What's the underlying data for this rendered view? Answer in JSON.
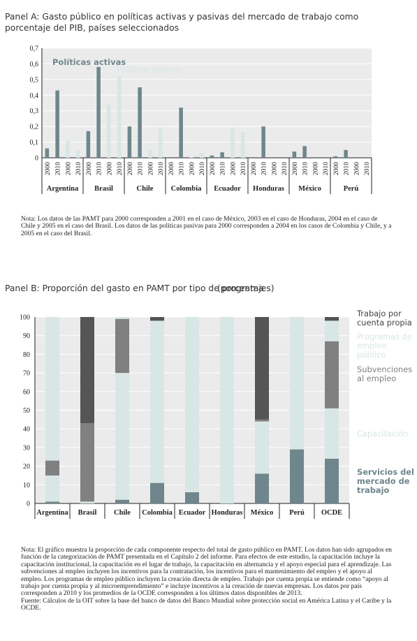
{
  "panel_a": {
    "title": "Panel A: Gasto público en políticas activas y pasivas del mercado de trabajo como porcentaje del PIB, países seleccionados",
    "note": "Nota: Los datos de las PAMT para 2000 corresponden a 2001 en el caso de México, 2003 en el caso de Honduras, 2004 en el caso de Chile y 2005 en el caso del Brasil. Los datos de las políticas pasivas para 2000 corresponden a 2004 en los casos de Colombia y Chile, y a 2005 en el caso del Brasil."
  },
  "panel_b": {
    "title": "Panel B: Proporción del gasto en PAMT por tipo de programa",
    "title_overlap": "(porcentajes)",
    "note": "Nota: El gráfico muestra la proporción de cada componente respecto del total de gasto público en PAMT. Los datos han sido agrupados en función de la categorización de PAMT presentada en el Capítulo 2 del informe. Para efectos de este estudio, la capacitación incluye la capacitación institucional, la capacitación en el lugar de trabajo, la capacitación en alternancia y el apoyo especial para el aprendizaje. Las subvenciones al empleo incluyen los incentivos para la contratación, los incentivos para el mantenimiento del empleo y el apoyo al empleo. Los programas de empleo público incluyen la creación directa de empleo. Trabajo por cuenta propia se entiende como “apoyo al trabajo por cuenta propia y al microemprendimiento” e incluye incentivos a la creación de nuevas empresas. Los datos por país corresponden a 2010 y los promedios de la OCDE corresponden a los últimos datos disponibles de 2013.",
    "source": "Fuente: Cálculos de la OIT sobre la base del banco de datos del Banco Mundial sobre protección social en América Latina y el Caribe y la OCDE."
  },
  "chart_data": [
    {
      "type": "bar",
      "title": "",
      "ylim": [
        0,
        0.7
      ],
      "yticks": [
        "0",
        "0,1",
        "0,2",
        "0,3",
        "0,4",
        "0,5",
        "0,6",
        "0,7"
      ],
      "categories": [
        "Argentina",
        "Brasil",
        "Chile",
        "Colombia",
        "Ecuador",
        "Honduras",
        "México",
        "Perú"
      ],
      "years": [
        "2000",
        "2010"
      ],
      "series": [
        {
          "name": "Políticas activas",
          "color": "#6e868c",
          "values": [
            [
              0.06,
              0.43
            ],
            [
              0.17,
              0.58
            ],
            [
              0.2,
              0.45
            ],
            [
              0.0,
              0.32
            ],
            [
              0.015,
              0.035
            ],
            [
              0.0,
              0.2
            ],
            [
              0.04,
              0.075
            ],
            [
              0.01,
              0.05
            ]
          ]
        },
        {
          "name": "Políticas pasivas",
          "color": "#d8e6e6",
          "values": [
            [
              0.11,
              0.05
            ],
            [
              0.34,
              0.52
            ],
            [
              0.055,
              0.19
            ],
            [
              0.005,
              0.03
            ],
            [
              0.19,
              0.165
            ],
            [
              0.0,
              0.0
            ],
            [
              0.0,
              0.0
            ],
            [
              0.0,
              0.0
            ]
          ]
        }
      ],
      "grid": true
    },
    {
      "type": "bar",
      "stacked": true,
      "title": "",
      "ylim": [
        0,
        100
      ],
      "yticks": [
        "0",
        "10",
        "20",
        "30",
        "40",
        "50",
        "60",
        "70",
        "80",
        "90",
        "100"
      ],
      "categories": [
        "Argentina",
        "Brasil",
        "Chile",
        "Colombia",
        "Ecuador",
        "Honduras",
        "México",
        "Perú",
        "OCDE"
      ],
      "series": [
        {
          "name": "Servicios del mercado de trabajo",
          "color": "#6e868c",
          "values": [
            1,
            0,
            2,
            11,
            6,
            0,
            16,
            29,
            24
          ]
        },
        {
          "name": "Capacitación",
          "color": "#d8e6e6",
          "values": [
            14,
            1,
            68,
            87,
            94,
            100,
            28,
            71,
            27
          ]
        },
        {
          "name": "Subvenciones al empleo",
          "color": "#808080",
          "values": [
            8,
            42,
            29,
            0,
            0,
            0,
            1,
            0,
            36
          ]
        },
        {
          "name": "Programas de empleo público",
          "color": "#d8e6e6",
          "values": [
            77,
            0,
            1,
            0,
            0,
            0,
            0,
            0,
            11
          ]
        },
        {
          "name": "Trabajo por cuenta propia",
          "color": "#555555",
          "values": [
            0,
            57,
            0,
            2,
            0,
            0,
            55,
            0,
            2
          ]
        }
      ],
      "grid": true,
      "legend": "right"
    }
  ]
}
